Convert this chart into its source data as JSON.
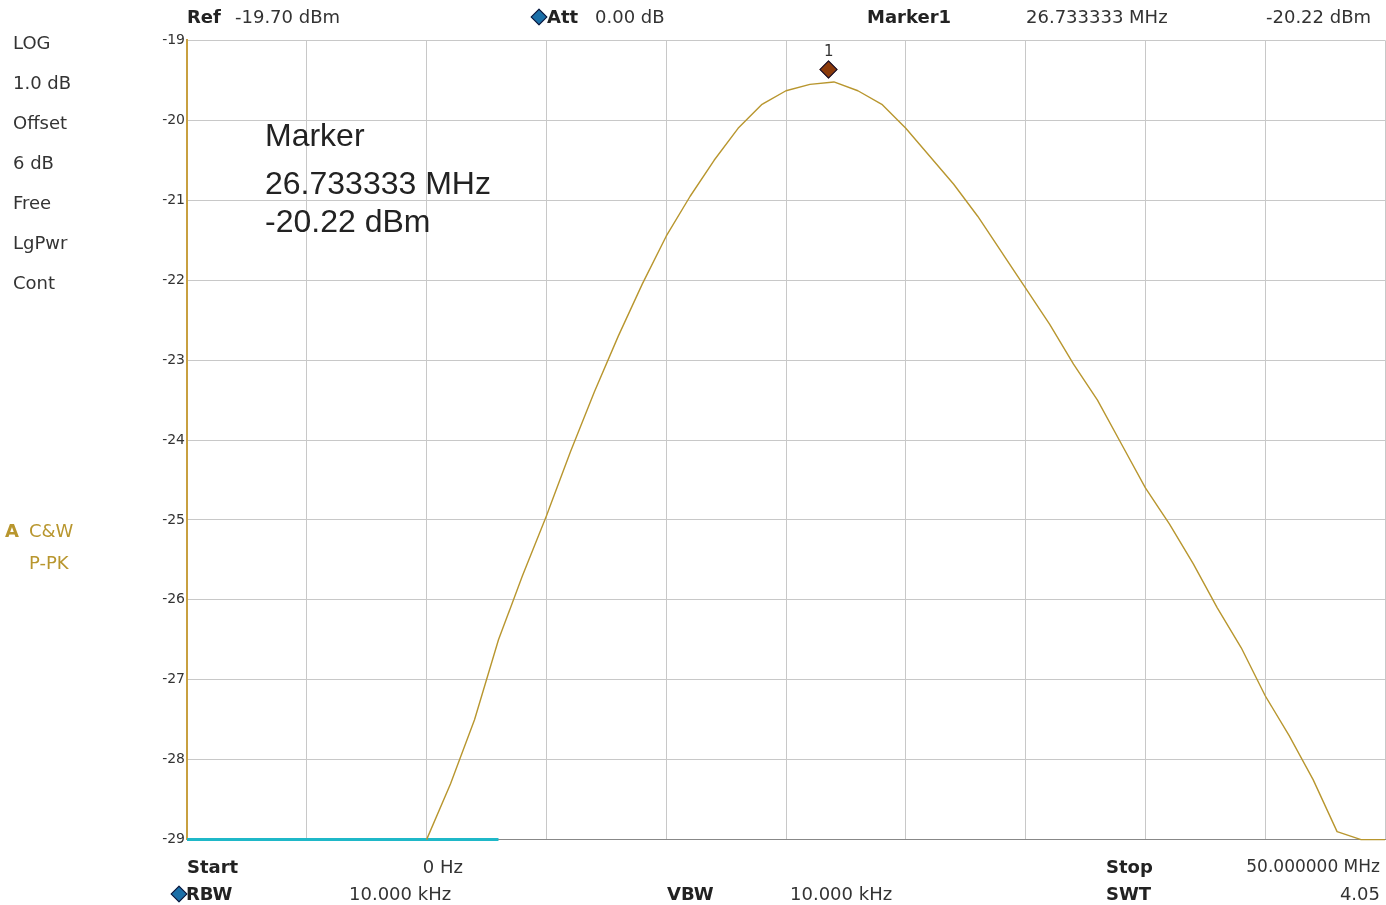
{
  "chart_data": {
    "type": "line",
    "categories": [
      null,
      null,
      null,
      null,
      null,
      null,
      null,
      null,
      null,
      null,
      null,
      null,
      null,
      null,
      null,
      null,
      null,
      null,
      null,
      null,
      null,
      null,
      null,
      null,
      null,
      null,
      null,
      null,
      null,
      null,
      null,
      null,
      null,
      null,
      null,
      null,
      null,
      null,
      null,
      null,
      null,
      null,
      null,
      null,
      null,
      null,
      null,
      null,
      null,
      null,
      null
    ],
    "ylim": [
      -29,
      -19
    ],
    "yticks": [
      -29,
      -28,
      -27,
      -26,
      -25,
      -24,
      -23,
      -22,
      -21,
      -20,
      -19
    ],
    "tick_labels": "y",
    "grid": true,
    "legend": false,
    "marker": "none",
    "line_style": "solid",
    "series": [
      {
        "color": "#b8962e",
        "values": [
          null,
          null,
          null,
          null,
          null,
          null,
          null,
          null,
          null,
          null,
          -29,
          -28.3,
          -27.5,
          -26.5,
          -25.7,
          -24.95,
          -24.15,
          -23.4,
          -22.7,
          -22.05,
          -21.45,
          -20.95,
          -20.5,
          -20.1,
          -19.8,
          -19.63,
          -19.55,
          -19.52,
          -19.63,
          -19.8,
          -20.1,
          -20.45,
          -20.8,
          -21.2,
          -21.65,
          -22.1,
          -22.55,
          -23.05,
          -23.5,
          -24.05,
          -24.6,
          -25.05,
          -25.55,
          -26.1,
          -26.6,
          -27.2,
          -27.7,
          -28.25,
          -28.9,
          -29,
          -29
        ]
      },
      {
        "color": "#1fb8c8",
        "values": [
          -29,
          -29,
          -29,
          -29,
          -29,
          -29,
          -29,
          -29,
          -29,
          -29,
          -29,
          -29,
          -29,
          -29,
          null,
          null,
          null,
          null,
          null,
          null,
          null,
          null,
          null,
          null,
          null,
          null,
          null,
          null,
          null,
          null,
          null,
          null,
          null,
          null,
          null,
          null,
          null,
          null,
          null,
          null,
          null,
          null,
          null,
          null,
          null,
          null,
          null,
          null,
          null,
          null,
          null
        ]
      }
    ],
    "annotations": [
      "Ref",
      "-19.70 dBm",
      "Att",
      "0.00 dB",
      "Marker1",
      "26.733333 MHz",
      "-20.22 dBm",
      "LOG",
      "1.0 dB",
      "Offset",
      "6 dB",
      "Free",
      "LgPwr",
      "Cont",
      "A",
      "C&W",
      "P-PK",
      "Marker",
      "26.733333 MHz",
      "-20.22 dBm",
      "Start",
      "0 Hz",
      "Stop",
      "50.000000 MHz",
      "RBW",
      "10.000 kHz",
      "VBW",
      "10.000 kHz",
      "SWT",
      "4.05",
      "1"
    ]
  }
}
